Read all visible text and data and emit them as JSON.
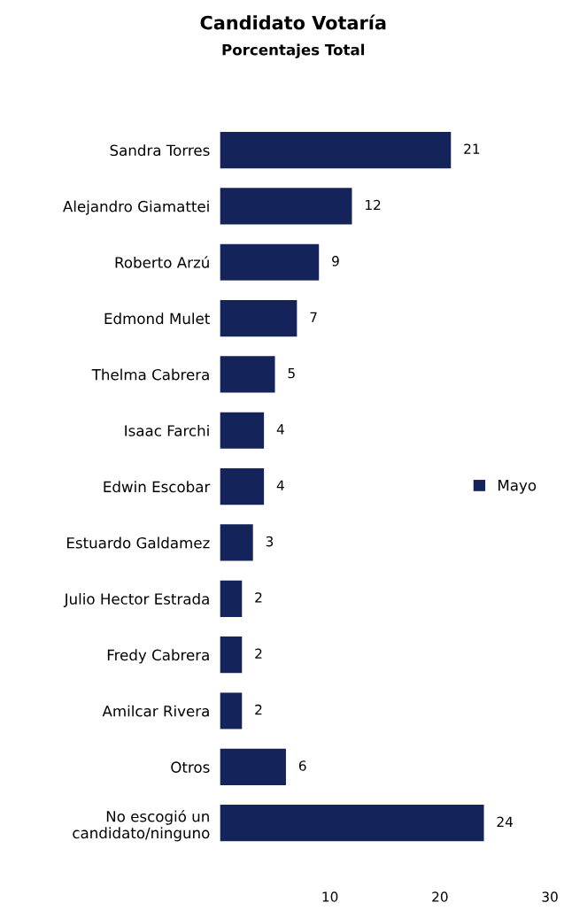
{
  "chart_data": {
    "type": "bar",
    "orientation": "horizontal",
    "title": "Candidato Votaría",
    "subtitle": "Porcentajes Total",
    "categories": [
      "Sandra Torres",
      "Alejandro Giamattei",
      "Roberto Arzú",
      "Edmond Mulet",
      "Thelma Cabrera",
      "Isaac Farchi",
      "Edwin Escobar",
      "Estuardo Galdamez",
      "Julio Hector Estrada",
      "Fredy Cabrera",
      "Amilcar Rivera",
      "Otros",
      "No escogió un\ncandidato/ninguno"
    ],
    "series": [
      {
        "name": "Mayo",
        "color": "#14235a",
        "values": [
          21,
          12,
          9,
          7,
          5,
          4,
          4,
          3,
          2,
          2,
          2,
          6,
          24
        ]
      }
    ],
    "xlim": [
      0,
      30
    ],
    "xticks": [
      10,
      20,
      30
    ],
    "data_labels": true,
    "legend": "right",
    "grid": false
  }
}
